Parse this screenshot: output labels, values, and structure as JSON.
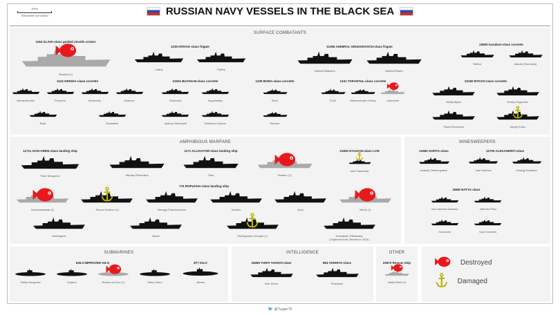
{
  "title": "RUSSIAN NAVY VESSELS IN THE BLACK SEA",
  "scale": {
    "length": "100m",
    "note": "Silhouettes are scaled"
  },
  "colors": {
    "destroyed": "#e8191c",
    "damaged": "#b8b200",
    "ship": "#111111",
    "lost_ship": "#aaaaaa",
    "panel": "#f3f3f3"
  },
  "icons": {
    "destroyed": "red-fish-icon",
    "damaged": "anchor-icon"
  },
  "surface": {
    "title": "SURFACE COMBATANTS",
    "groups": [
      {
        "cls": "1164 SLAVA-class guided missile cruiser",
        "ships": [
          {
            "name": "Moskva (†)",
            "status": "destroyed"
          }
        ]
      },
      {
        "cls": "1135 KRIVAK-class frigate",
        "ships": [
          {
            "name": "Ladny"
          },
          {
            "name": "Pytlivy"
          }
        ]
      },
      {
        "cls": "11356 ADMIRAL GRIGOROVICH-class frigate",
        "ships": [
          {
            "name": "Admiral Makarov"
          },
          {
            "name": "Admiral Essen"
          }
        ]
      },
      {
        "cls": "22800 Karakurt-class corvette",
        "ships": [
          {
            "name": "Tsiklon"
          },
          {
            "name": "Askold (Sea baby)"
          }
        ]
      },
      {
        "cls": "1124 GRISHA-class corvette",
        "ships": [
          {
            "name": "Alexandrovets"
          },
          {
            "name": "Povorino"
          },
          {
            "name": "Muromets"
          },
          {
            "name": "Kasimov"
          },
          {
            "name": "Eysk"
          },
          {
            "name": "Suzdalets"
          }
        ]
      },
      {
        "cls": "21631 BUYAN-M-class corvette",
        "ships": [
          {
            "name": "Graivoron"
          },
          {
            "name": "Ingushetiya"
          },
          {
            "name": "Vyshny Volochyok"
          },
          {
            "name": "Orekhovo-Zuyevo"
          }
        ]
      },
      {
        "cls": "1239 BORA-class corvette",
        "ships": [
          {
            "name": "Bora"
          },
          {
            "name": "Samum"
          }
        ]
      },
      {
        "cls": "1241 TARANTUL-class corvette",
        "ships": [
          {
            "name": "R-60"
          },
          {
            "name": "Naberezhnye Chelny"
          },
          {
            "name": "Ivanovets",
            "status": "destroyed"
          }
        ]
      },
      {
        "cls": "22160 BYKOV-class corvette",
        "ships": [
          {
            "name": "Vasily Bykov"
          },
          {
            "name": "Dmitry Rogachev"
          },
          {
            "name": "Pavel Derzhavin"
          },
          {
            "name": "Sergei Kotov",
            "status": "damaged"
          }
        ]
      }
    ]
  },
  "amphibious": {
    "title": "AMPHIBIOUS WARFARE",
    "groups": [
      {
        "cls": "11711 IVAN GREN-class landing ship",
        "ships": [
          {
            "name": "Pyotr Morgunov"
          }
        ]
      },
      {
        "cls": "1171 ALLIGATOR-class landing ship",
        "ships": [
          {
            "name": "Nikolay Filchenkov"
          },
          {
            "name": "Orsk"
          },
          {
            "name": "Saratov (†)",
            "status": "destroyed"
          }
        ]
      },
      {
        "cls": "21820 DYUGON-class LCM",
        "ships": [
          {
            "name": "Ivan Pasechnik",
            "status": "damaged"
          }
        ]
      },
      {
        "cls": "775 ROPUCHA-class landing ship",
        "ships": [
          {
            "name": "Novocherkassk (†)",
            "status": "destroyed"
          },
          {
            "name": "Tsezar Kunikov (†)",
            "status": "damaged"
          },
          {
            "name": "Georgiy Pobedonosets"
          },
          {
            "name": "Korolev"
          },
          {
            "name": "Azov"
          },
          {
            "name": "Minsk (†)",
            "status": "destroyed"
          },
          {
            "name": "Kaliningrad"
          },
          {
            "name": "Yamal"
          },
          {
            "name": "Olenegorsky Gornyak (†)",
            "status": "damaged"
          },
          {
            "name": "Konstantin Olshansky",
            "note": "(Captured from Ukraine in 2014)"
          }
        ]
      }
    ]
  },
  "minesweepers": {
    "title": "MINESWEEPERS",
    "groups": [
      {
        "cls": "12660 GORYA-class",
        "ships": [
          {
            "name": "Anatoly Zheleznyakov"
          }
        ]
      },
      {
        "cls": "12700 ALEXANDRIT-class",
        "ships": [
          {
            "name": "Ivan Antonov"
          },
          {
            "name": "Georgy Kurbatov"
          }
        ]
      },
      {
        "cls": "266M NATYA-class",
        "ships": [
          {
            "name": "Vice-admiral Zakharin"
          },
          {
            "name": "Valentin Pikul"
          },
          {
            "name": "Kovrovets"
          },
          {
            "name": "Ivan Golubets"
          }
        ]
      }
    ]
  },
  "submarines": {
    "title": "SUBMARINES",
    "groups": [
      {
        "cls": "636.3 IMPROVED KILO",
        "ships": [
          {
            "name": "Veliky Novgorod"
          },
          {
            "name": "Kolpino"
          },
          {
            "name": "Rostov-on-Don (†)",
            "status": "destroyed"
          },
          {
            "name": "Stary Oskol"
          }
        ]
      },
      {
        "cls": "877 KILO",
        "ships": [
          {
            "name": "Alrosa"
          }
        ]
      }
    ]
  },
  "intelligence": {
    "title": "INTELLIGENCE",
    "groups": [
      {
        "cls": "18280 YURIY IVANOV-class",
        "ships": [
          {
            "name": "Ivan Khurs"
          }
        ]
      },
      {
        "cls": "864 VISHNYA-class",
        "ships": [
          {
            "name": "Priazovye"
          }
        ]
      }
    ]
  },
  "other": {
    "title": "OTHER",
    "groups": [
      {
        "cls": "22870 Rescue ship",
        "ships": [
          {
            "name": "Vasily Bekh (†)",
            "status": "destroyed"
          }
        ]
      }
    ]
  },
  "legend": {
    "destroyed": "Destroyed",
    "damaged": "Damaged"
  },
  "footer": "@Tuyger76"
}
